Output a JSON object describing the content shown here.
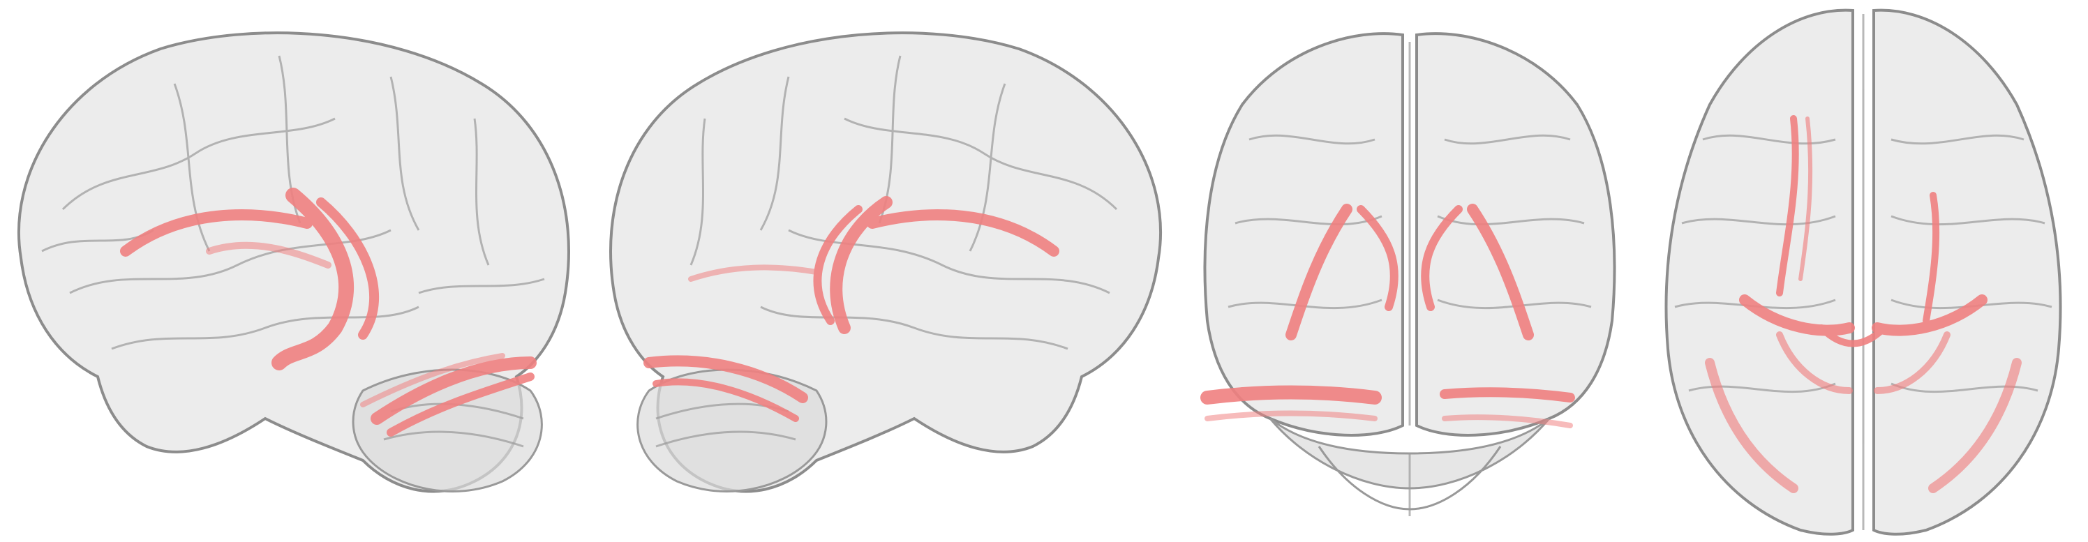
{
  "figure": {
    "background_color": "#ffffff",
    "brain_fill": "#d9d9d9",
    "brain_stroke": "#8c8c8c",
    "tract_color": "#f08080",
    "tract_highlight": "#f4a3a3",
    "views": [
      {
        "id": "left-lateral",
        "orientation": "lateral-left"
      },
      {
        "id": "right-lateral",
        "orientation": "lateral-right"
      },
      {
        "id": "posterior",
        "orientation": "posterior"
      },
      {
        "id": "superior",
        "orientation": "superior"
      }
    ]
  }
}
